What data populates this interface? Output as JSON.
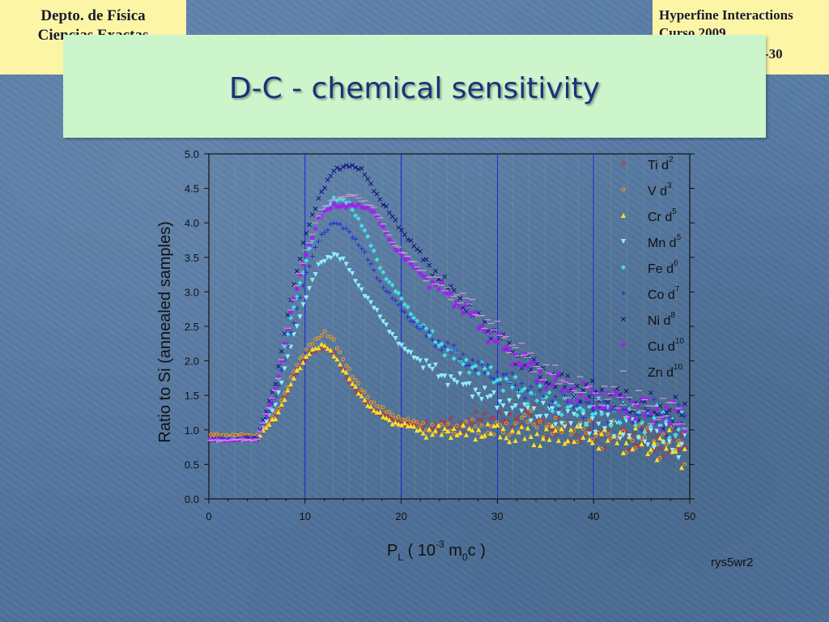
{
  "header": {
    "left_line1": "Depto. de Física",
    "left_line2": "Ciencias Exactas",
    "right_line1": "Hyperfine Interactions",
    "right_line2": "Curso 2009",
    "right_line3": "-30"
  },
  "slide": {
    "title": "D-C -  chemical sensitivity",
    "note": "rys5wr2"
  },
  "colors": {
    "title_box": "#ccf5cc",
    "corner_box": "#fdf5a6",
    "Ti": "#d22020",
    "V": "#ff9a1a",
    "Cr": "#ffe020",
    "Mn": "#8ff0ff",
    "Fe": "#40e0e8",
    "Co": "#2030d0",
    "Ni": "#10107a",
    "Cu": "#a020f0",
    "Zn": "#d09ad8",
    "gridline": "#1a2ccf"
  },
  "chart_data": {
    "type": "scatter",
    "xlabel": {
      "base": "P",
      "sub": "L",
      "rest1": " ( 10",
      "sup": "-3",
      "rest2": " m",
      "sub2": "0",
      "rest3": "c )"
    },
    "ylabel": "Ratio to Si (annealed samples)",
    "xlim": [
      0,
      50
    ],
    "ylim": [
      0,
      5
    ],
    "x_ticks": [
      "0",
      "10",
      "20",
      "30",
      "40",
      "50"
    ],
    "y_ticks": [
      "0.0",
      "0.5",
      "1.0",
      "1.5",
      "2.0",
      "2.5",
      "3.0",
      "3.5",
      "4.0",
      "4.5",
      "5.0"
    ],
    "vertical_gridlines": [
      10,
      20,
      30,
      40
    ],
    "legend_position": "top-right",
    "series": [
      {
        "name": "Ti d",
        "sup": "2",
        "marker": "circle",
        "points": [
          [
            0,
            0.89
          ],
          [
            5,
            0.9
          ],
          [
            7,
            1.2
          ],
          [
            9,
            1.8
          ],
          [
            10.5,
            2.12
          ],
          [
            12,
            2.2
          ],
          [
            13,
            2.1
          ],
          [
            15,
            1.6
          ],
          [
            17,
            1.3
          ],
          [
            19,
            1.15
          ],
          [
            21,
            1.08
          ],
          [
            24,
            1.05
          ],
          [
            27,
            1.1
          ],
          [
            29,
            1.2
          ],
          [
            31,
            1.1
          ],
          [
            33,
            1.25
          ],
          [
            36,
            1.0
          ],
          [
            40,
            0.95
          ],
          [
            44,
            0.9
          ],
          [
            48,
            0.8
          ],
          [
            50,
            0.75
          ]
        ]
      },
      {
        "name": "V d",
        "sup": "3",
        "marker": "circle",
        "points": [
          [
            0,
            0.93
          ],
          [
            5,
            0.92
          ],
          [
            7,
            1.25
          ],
          [
            9,
            1.9
          ],
          [
            10.5,
            2.25
          ],
          [
            12,
            2.4
          ],
          [
            13,
            2.3
          ],
          [
            15,
            1.75
          ],
          [
            17,
            1.4
          ],
          [
            19,
            1.22
          ],
          [
            21,
            1.12
          ],
          [
            24,
            1.0
          ],
          [
            27,
            1.05
          ],
          [
            29,
            1.0
          ],
          [
            31,
            1.0
          ],
          [
            33,
            1.15
          ],
          [
            36,
            1.0
          ],
          [
            40,
            0.95
          ],
          [
            44,
            0.88
          ],
          [
            48,
            0.8
          ],
          [
            50,
            0.75
          ]
        ]
      },
      {
        "name": "Cr d",
        "sup": "5",
        "marker": "triangle-up",
        "points": [
          [
            0,
            0.88
          ],
          [
            5,
            0.88
          ],
          [
            7,
            1.2
          ],
          [
            9,
            1.8
          ],
          [
            10.5,
            2.15
          ],
          [
            12,
            2.23
          ],
          [
            13,
            2.1
          ],
          [
            15,
            1.65
          ],
          [
            17,
            1.3
          ],
          [
            19,
            1.12
          ],
          [
            21,
            1.05
          ],
          [
            23,
            0.95
          ],
          [
            25,
            1.0
          ],
          [
            27,
            0.95
          ],
          [
            29,
            1.0
          ],
          [
            31,
            0.95
          ],
          [
            34,
            0.9
          ],
          [
            38,
            0.95
          ],
          [
            42,
            0.9
          ],
          [
            46,
            0.8
          ],
          [
            50,
            0.7
          ]
        ]
      },
      {
        "name": "Mn d",
        "sup": "5",
        "marker": "triangle-down",
        "points": [
          [
            0,
            0.85
          ],
          [
            5,
            0.87
          ],
          [
            7,
            1.4
          ],
          [
            8.5,
            2.2
          ],
          [
            10,
            2.9
          ],
          [
            11.5,
            3.4
          ],
          [
            13,
            3.55
          ],
          [
            14,
            3.45
          ],
          [
            16,
            3.0
          ],
          [
            18,
            2.6
          ],
          [
            20,
            2.2
          ],
          [
            22,
            2.0
          ],
          [
            24,
            1.8
          ],
          [
            26,
            1.7
          ],
          [
            28,
            1.55
          ],
          [
            30,
            1.4
          ],
          [
            33,
            1.3
          ],
          [
            36,
            1.2
          ],
          [
            40,
            1.1
          ],
          [
            44,
            1.0
          ],
          [
            48,
            0.85
          ],
          [
            50,
            0.8
          ]
        ]
      },
      {
        "name": "Fe d",
        "sup": "6",
        "marker": "diamond",
        "points": [
          [
            0,
            0.86
          ],
          [
            5,
            0.88
          ],
          [
            7,
            1.6
          ],
          [
            8.5,
            2.6
          ],
          [
            10,
            3.4
          ],
          [
            11.5,
            4.1
          ],
          [
            13,
            4.35
          ],
          [
            14.5,
            4.3
          ],
          [
            16,
            3.95
          ],
          [
            18,
            3.3
          ],
          [
            20,
            2.9
          ],
          [
            22,
            2.5
          ],
          [
            24,
            2.25
          ],
          [
            26,
            2.0
          ],
          [
            28,
            1.9
          ],
          [
            30,
            1.75
          ],
          [
            32,
            1.6
          ],
          [
            35,
            1.45
          ],
          [
            38,
            1.3
          ],
          [
            42,
            1.25
          ],
          [
            46,
            1.15
          ],
          [
            50,
            1.05
          ]
        ]
      },
      {
        "name": "Co d",
        "sup": "7",
        "marker": "plus",
        "points": [
          [
            0,
            0.86
          ],
          [
            5,
            0.88
          ],
          [
            7,
            1.5
          ],
          [
            8.5,
            2.4
          ],
          [
            10,
            3.2
          ],
          [
            11.5,
            3.8
          ],
          [
            13,
            4.0
          ],
          [
            14.5,
            3.9
          ],
          [
            16,
            3.6
          ],
          [
            18,
            3.1
          ],
          [
            20,
            2.75
          ],
          [
            22,
            2.45
          ],
          [
            24,
            2.25
          ],
          [
            26,
            2.1
          ],
          [
            28,
            1.9
          ],
          [
            30,
            1.8
          ],
          [
            32,
            1.65
          ],
          [
            35,
            1.5
          ],
          [
            38,
            1.4
          ],
          [
            42,
            1.3
          ],
          [
            46,
            1.2
          ],
          [
            50,
            1.1
          ]
        ]
      },
      {
        "name": "Ni d",
        "sup": "8",
        "marker": "cross",
        "points": [
          [
            0,
            0.86
          ],
          [
            5,
            0.88
          ],
          [
            7,
            1.7
          ],
          [
            8.5,
            2.9
          ],
          [
            10,
            3.8
          ],
          [
            11.5,
            4.4
          ],
          [
            13,
            4.75
          ],
          [
            14.5,
            4.85
          ],
          [
            16,
            4.75
          ],
          [
            18,
            4.3
          ],
          [
            20,
            3.9
          ],
          [
            22,
            3.55
          ],
          [
            24,
            3.2
          ],
          [
            26,
            2.9
          ],
          [
            28,
            2.6
          ],
          [
            30,
            2.35
          ],
          [
            32,
            2.05
          ],
          [
            35,
            1.8
          ],
          [
            38,
            1.6
          ],
          [
            42,
            1.45
          ],
          [
            46,
            1.3
          ],
          [
            50,
            1.2
          ]
        ]
      },
      {
        "name": "Cu d",
        "sup": "10",
        "marker": "asterisk",
        "points": [
          [
            0,
            0.85
          ],
          [
            5,
            0.86
          ],
          [
            7,
            1.6
          ],
          [
            8.5,
            2.7
          ],
          [
            10,
            3.5
          ],
          [
            11.5,
            4.1
          ],
          [
            13,
            4.25
          ],
          [
            15,
            4.25
          ],
          [
            17,
            4.2
          ],
          [
            19,
            3.7
          ],
          [
            21,
            3.4
          ],
          [
            23,
            3.15
          ],
          [
            25,
            2.95
          ],
          [
            27,
            2.7
          ],
          [
            29,
            2.4
          ],
          [
            31,
            2.15
          ],
          [
            33,
            1.95
          ],
          [
            35,
            1.75
          ],
          [
            38,
            1.55
          ],
          [
            42,
            1.4
          ],
          [
            46,
            1.25
          ],
          [
            50,
            1.15
          ]
        ]
      },
      {
        "name": "Zn d",
        "sup": "10",
        "marker": "dash",
        "points": [
          [
            0,
            0.85
          ],
          [
            5,
            0.86
          ],
          [
            7,
            1.6
          ],
          [
            8.5,
            2.7
          ],
          [
            10,
            3.55
          ],
          [
            11.5,
            4.15
          ],
          [
            13,
            4.35
          ],
          [
            15,
            4.4
          ],
          [
            17,
            4.25
          ],
          [
            19,
            3.75
          ],
          [
            21,
            3.45
          ],
          [
            23,
            3.2
          ],
          [
            25,
            3.0
          ],
          [
            27,
            2.85
          ],
          [
            29,
            2.55
          ],
          [
            31,
            2.3
          ],
          [
            33,
            2.05
          ],
          [
            35,
            1.85
          ],
          [
            38,
            1.6
          ],
          [
            42,
            1.45
          ],
          [
            46,
            1.3
          ],
          [
            50,
            1.2
          ]
        ]
      }
    ]
  }
}
